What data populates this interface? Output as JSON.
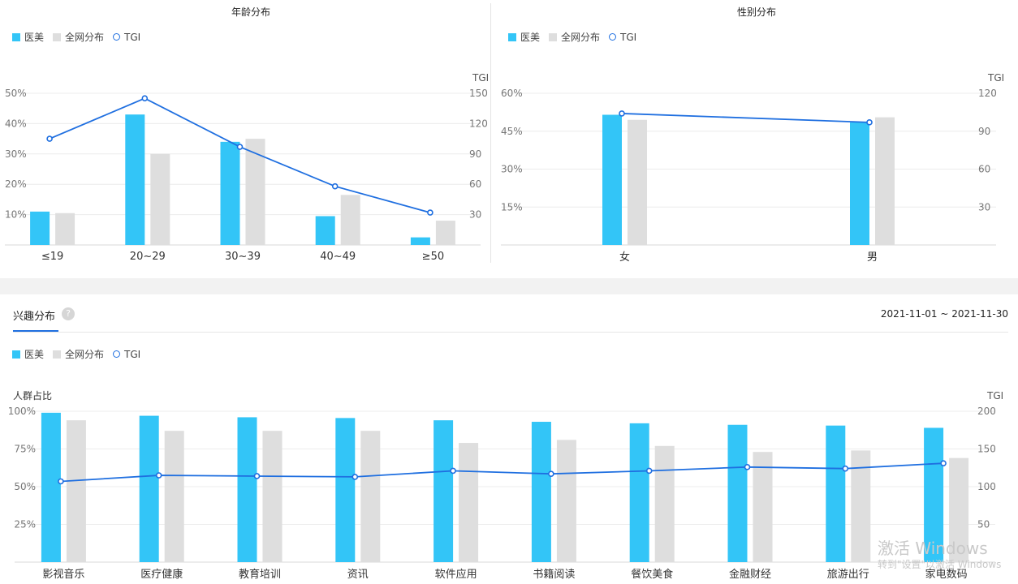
{
  "colors": {
    "primary": "#33c5f7",
    "compare": "#dedede",
    "tgi": "#1f6fe0"
  },
  "legend": {
    "series1": "医美",
    "series2": "全网分布",
    "series3": "TGI"
  },
  "interest": {
    "tab_label": "兴趣分布",
    "help_icon": "question-icon",
    "date_range": "2021-11-01 ~ 2021-11-30"
  },
  "watermark": {
    "line1": "激活 Windows",
    "line2": "转到\"设置\"以激活 Windows"
  },
  "chart_data": [
    {
      "type": "bar",
      "title": "年龄分布",
      "categories": [
        "≤19",
        "20~29",
        "30~39",
        "40~49",
        "≥50"
      ],
      "series": [
        {
          "name": "医美",
          "kind": "bar",
          "axis": "left",
          "values": [
            11,
            43,
            34,
            9.5,
            2.5
          ]
        },
        {
          "name": "全网分布",
          "kind": "bar",
          "axis": "left",
          "values": [
            10.5,
            30,
            35,
            16.5,
            8
          ]
        },
        {
          "name": "TGI",
          "kind": "line",
          "axis": "right",
          "values": [
            105,
            145,
            97,
            58,
            32
          ]
        }
      ],
      "y_left": {
        "ticks": [
          "10%",
          "20%",
          "30%",
          "40%",
          "50%"
        ],
        "ylim": [
          0,
          50
        ]
      },
      "y_right": {
        "label": "TGI",
        "ticks": [
          "30",
          "60",
          "90",
          "120",
          "150"
        ],
        "ylim": [
          0,
          150
        ]
      },
      "grid": true
    },
    {
      "type": "bar",
      "title": "性别分布",
      "categories": [
        "女",
        "男"
      ],
      "series": [
        {
          "name": "医美",
          "kind": "bar",
          "axis": "left",
          "values": [
            51.5,
            48.5
          ]
        },
        {
          "name": "全网分布",
          "kind": "bar",
          "axis": "left",
          "values": [
            49.5,
            50.5
          ]
        },
        {
          "name": "TGI",
          "kind": "line",
          "axis": "right",
          "values": [
            104,
            97
          ]
        }
      ],
      "y_left": {
        "ticks": [
          "15%",
          "30%",
          "45%",
          "60%"
        ],
        "ylim": [
          0,
          60
        ]
      },
      "y_right": {
        "label": "TGI",
        "ticks": [
          "30",
          "60",
          "90",
          "120"
        ],
        "ylim": [
          0,
          120
        ]
      },
      "grid": true
    },
    {
      "type": "bar",
      "categories": [
        "影视音乐",
        "医疗健康",
        "教育培训",
        "资讯",
        "软件应用",
        "书籍阅读",
        "餐饮美食",
        "金融财经",
        "旅游出行",
        "家电数码"
      ],
      "series": [
        {
          "name": "医美",
          "kind": "bar",
          "axis": "left",
          "values": [
            99,
            97,
            96,
            95.5,
            94,
            93,
            92,
            91,
            90.5,
            89
          ]
        },
        {
          "name": "全网分布",
          "kind": "bar",
          "axis": "left",
          "values": [
            94,
            87,
            87,
            87,
            79,
            81,
            77,
            73,
            74,
            69
          ]
        },
        {
          "name": "TGI",
          "kind": "line",
          "axis": "right",
          "values": [
            107,
            115,
            114,
            113,
            121,
            117,
            121,
            126,
            124,
            131
          ]
        }
      ],
      "y_left": {
        "label": "人群占比",
        "ticks": [
          "25%",
          "50%",
          "75%",
          "100%"
        ],
        "ylim": [
          0,
          100
        ]
      },
      "y_right": {
        "label": "TGI",
        "ticks": [
          "50",
          "100",
          "150",
          "200"
        ],
        "ylim": [
          0,
          200
        ]
      },
      "grid": true
    }
  ]
}
